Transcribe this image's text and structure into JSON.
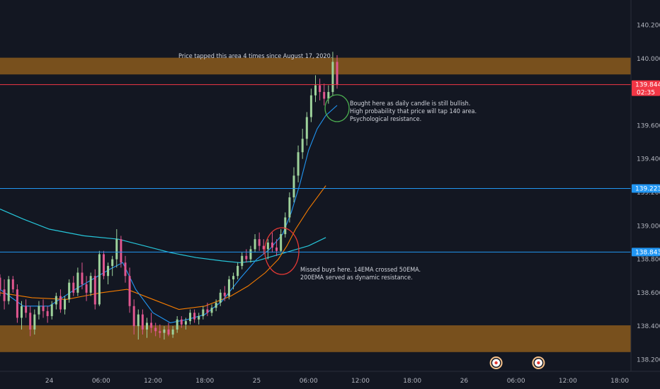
{
  "colors": {
    "background": "#131722",
    "zone": "#8b5a1c",
    "up_candle": "#26a69a",
    "up_candle_fill": "#9ed29b",
    "down_candle": "#ef5350",
    "down_candle_fill": "#e0568f",
    "ema14": "#2196f3",
    "ema50": "#f57c00",
    "ema200": "#26c6da",
    "price_line": "#f23645",
    "support_line": "#2196f3",
    "green_circle": "#4caf50",
    "red_circle": "#e53935"
  },
  "chart_data": {
    "type": "candlestick",
    "title": "",
    "xlabel": "",
    "ylabel": "",
    "ylim": [
      138.13,
      140.35
    ],
    "y_ticks": [
      "140.200",
      "140.000",
      "139.800",
      "139.600",
      "139.400",
      "139.200",
      "139.000",
      "138.800",
      "138.600",
      "138.400",
      "138.200"
    ],
    "y_tick_values": [
      140.2,
      140.0,
      139.8,
      139.6,
      139.4,
      139.2,
      139.0,
      138.8,
      138.6,
      138.4,
      138.2
    ],
    "x_ticks": [
      "24",
      "06:00",
      "12:00",
      "18:00",
      "25",
      "06:00",
      "12:00",
      "18:00",
      "26",
      "06:00",
      "12:00",
      "18:00"
    ],
    "x_tick_hours": [
      0,
      6,
      12,
      18,
      24,
      30,
      36,
      42,
      48,
      54,
      60,
      66
    ],
    "x_range_hours": [
      -5.7,
      67.3
    ],
    "zones": [
      {
        "name": "resistance",
        "from": 139.905,
        "to": 140.005
      },
      {
        "name": "support",
        "from": 138.245,
        "to": 138.405
      }
    ],
    "horizontal_lines": [
      {
        "name": "current-price",
        "value": 139.844,
        "label": "139.844",
        "sublabel": "02:35",
        "color": "#f23645"
      },
      {
        "name": "line-139223",
        "value": 139.223,
        "label": "139.223",
        "color": "#2196f3"
      },
      {
        "name": "line-138843",
        "value": 138.843,
        "label": "138.843",
        "color": "#2196f3"
      }
    ],
    "series_hint": "5-minute-ish candles (hourly-ish aggregation) from 23rd evening to 25th 09:00",
    "candles": [
      {
        "t": -5.7,
        "o": 138.69,
        "h": 138.71,
        "l": 138.58,
        "c": 138.62
      },
      {
        "t": -5.2,
        "o": 138.62,
        "h": 138.68,
        "l": 138.5,
        "c": 138.55
      },
      {
        "t": -4.7,
        "o": 138.55,
        "h": 138.7,
        "l": 138.53,
        "c": 138.68
      },
      {
        "t": -4.2,
        "o": 138.68,
        "h": 138.7,
        "l": 138.6,
        "c": 138.62
      },
      {
        "t": -3.7,
        "o": 138.62,
        "h": 138.65,
        "l": 138.42,
        "c": 138.45
      },
      {
        "t": -3.2,
        "o": 138.45,
        "h": 138.55,
        "l": 138.38,
        "c": 138.52
      },
      {
        "t": -2.7,
        "o": 138.52,
        "h": 138.56,
        "l": 138.45,
        "c": 138.48
      },
      {
        "t": -2.2,
        "o": 138.48,
        "h": 138.52,
        "l": 138.34,
        "c": 138.38
      },
      {
        "t": -1.7,
        "o": 138.38,
        "h": 138.5,
        "l": 138.35,
        "c": 138.47
      },
      {
        "t": -1.2,
        "o": 138.47,
        "h": 138.55,
        "l": 138.44,
        "c": 138.52
      },
      {
        "t": -0.7,
        "o": 138.52,
        "h": 138.56,
        "l": 138.45,
        "c": 138.49
      },
      {
        "t": -0.2,
        "o": 138.49,
        "h": 138.52,
        "l": 138.42,
        "c": 138.46
      },
      {
        "t": 0.3,
        "o": 138.46,
        "h": 138.55,
        "l": 138.44,
        "c": 138.53
      },
      {
        "t": 0.8,
        "o": 138.53,
        "h": 138.6,
        "l": 138.5,
        "c": 138.58
      },
      {
        "t": 1.3,
        "o": 138.58,
        "h": 138.62,
        "l": 138.48,
        "c": 138.5
      },
      {
        "t": 1.8,
        "o": 138.5,
        "h": 138.58,
        "l": 138.47,
        "c": 138.56
      },
      {
        "t": 2.3,
        "o": 138.56,
        "h": 138.68,
        "l": 138.54,
        "c": 138.66
      },
      {
        "t": 2.8,
        "o": 138.66,
        "h": 138.7,
        "l": 138.58,
        "c": 138.6
      },
      {
        "t": 3.3,
        "o": 138.6,
        "h": 138.75,
        "l": 138.58,
        "c": 138.72
      },
      {
        "t": 3.8,
        "o": 138.72,
        "h": 138.78,
        "l": 138.62,
        "c": 138.65
      },
      {
        "t": 4.3,
        "o": 138.65,
        "h": 138.7,
        "l": 138.55,
        "c": 138.6
      },
      {
        "t": 4.8,
        "o": 138.6,
        "h": 138.72,
        "l": 138.58,
        "c": 138.7
      },
      {
        "t": 5.3,
        "o": 138.7,
        "h": 138.74,
        "l": 138.5,
        "c": 138.53
      },
      {
        "t": 5.8,
        "o": 138.53,
        "h": 138.85,
        "l": 138.52,
        "c": 138.83
      },
      {
        "t": 6.3,
        "o": 138.83,
        "h": 138.85,
        "l": 138.68,
        "c": 138.7
      },
      {
        "t": 6.8,
        "o": 138.7,
        "h": 138.78,
        "l": 138.65,
        "c": 138.76
      },
      {
        "t": 7.3,
        "o": 138.76,
        "h": 138.82,
        "l": 138.7,
        "c": 138.8
      },
      {
        "t": 7.8,
        "o": 138.8,
        "h": 138.98,
        "l": 138.75,
        "c": 138.92
      },
      {
        "t": 8.3,
        "o": 138.92,
        "h": 138.94,
        "l": 138.75,
        "c": 138.78
      },
      {
        "t": 8.8,
        "o": 138.78,
        "h": 138.82,
        "l": 138.66,
        "c": 138.7
      },
      {
        "t": 9.3,
        "o": 138.7,
        "h": 138.75,
        "l": 138.48,
        "c": 138.52
      },
      {
        "t": 9.8,
        "o": 138.52,
        "h": 138.56,
        "l": 138.35,
        "c": 138.4
      },
      {
        "t": 10.3,
        "o": 138.4,
        "h": 138.5,
        "l": 138.32,
        "c": 138.47
      },
      {
        "t": 10.8,
        "o": 138.47,
        "h": 138.5,
        "l": 138.35,
        "c": 138.38
      },
      {
        "t": 11.3,
        "o": 138.38,
        "h": 138.45,
        "l": 138.33,
        "c": 138.42
      },
      {
        "t": 11.8,
        "o": 138.42,
        "h": 138.48,
        "l": 138.36,
        "c": 138.39
      },
      {
        "t": 12.3,
        "o": 138.39,
        "h": 138.42,
        "l": 138.34,
        "c": 138.37
      },
      {
        "t": 12.8,
        "o": 138.37,
        "h": 138.41,
        "l": 138.33,
        "c": 138.36
      },
      {
        "t": 13.3,
        "o": 138.36,
        "h": 138.4,
        "l": 138.32,
        "c": 138.38
      },
      {
        "t": 13.8,
        "o": 138.38,
        "h": 138.42,
        "l": 138.34,
        "c": 138.35
      },
      {
        "t": 14.3,
        "o": 138.35,
        "h": 138.4,
        "l": 138.33,
        "c": 138.38
      },
      {
        "t": 14.8,
        "o": 138.38,
        "h": 138.46,
        "l": 138.36,
        "c": 138.44
      },
      {
        "t": 15.3,
        "o": 138.44,
        "h": 138.46,
        "l": 138.39,
        "c": 138.41
      },
      {
        "t": 15.8,
        "o": 138.41,
        "h": 138.45,
        "l": 138.38,
        "c": 138.43
      },
      {
        "t": 16.3,
        "o": 138.43,
        "h": 138.5,
        "l": 138.41,
        "c": 138.48
      },
      {
        "t": 16.8,
        "o": 138.48,
        "h": 138.5,
        "l": 138.42,
        "c": 138.44
      },
      {
        "t": 17.3,
        "o": 138.44,
        "h": 138.48,
        "l": 138.41,
        "c": 138.46
      },
      {
        "t": 17.8,
        "o": 138.46,
        "h": 138.52,
        "l": 138.44,
        "c": 138.5
      },
      {
        "t": 18.3,
        "o": 138.5,
        "h": 138.54,
        "l": 138.46,
        "c": 138.48
      },
      {
        "t": 18.8,
        "o": 138.48,
        "h": 138.53,
        "l": 138.46,
        "c": 138.51
      },
      {
        "t": 19.3,
        "o": 138.51,
        "h": 138.56,
        "l": 138.49,
        "c": 138.54
      },
      {
        "t": 19.8,
        "o": 138.54,
        "h": 138.62,
        "l": 138.52,
        "c": 138.6
      },
      {
        "t": 20.3,
        "o": 138.6,
        "h": 138.64,
        "l": 138.55,
        "c": 138.58
      },
      {
        "t": 20.8,
        "o": 138.58,
        "h": 138.7,
        "l": 138.56,
        "c": 138.68
      },
      {
        "t": 21.3,
        "o": 138.68,
        "h": 138.72,
        "l": 138.62,
        "c": 138.7
      },
      {
        "t": 21.8,
        "o": 138.7,
        "h": 138.78,
        "l": 138.68,
        "c": 138.76
      },
      {
        "t": 22.3,
        "o": 138.76,
        "h": 138.84,
        "l": 138.74,
        "c": 138.82
      },
      {
        "t": 22.8,
        "o": 138.82,
        "h": 138.86,
        "l": 138.78,
        "c": 138.8
      },
      {
        "t": 23.3,
        "o": 138.8,
        "h": 138.88,
        "l": 138.78,
        "c": 138.86
      },
      {
        "t": 23.8,
        "o": 138.86,
        "h": 138.95,
        "l": 138.84,
        "c": 138.92
      },
      {
        "t": 24.3,
        "o": 138.92,
        "h": 138.96,
        "l": 138.85,
        "c": 138.88
      },
      {
        "t": 24.8,
        "o": 138.88,
        "h": 138.92,
        "l": 138.83,
        "c": 138.86
      },
      {
        "t": 25.3,
        "o": 138.86,
        "h": 138.92,
        "l": 138.8,
        "c": 138.9
      },
      {
        "t": 25.8,
        "o": 138.9,
        "h": 138.96,
        "l": 138.84,
        "c": 138.87
      },
      {
        "t": 26.3,
        "o": 138.87,
        "h": 138.92,
        "l": 138.82,
        "c": 138.85
      },
      {
        "t": 26.8,
        "o": 138.85,
        "h": 138.98,
        "l": 138.84,
        "c": 138.95
      },
      {
        "t": 27.3,
        "o": 138.95,
        "h": 139.08,
        "l": 138.93,
        "c": 139.05
      },
      {
        "t": 27.8,
        "o": 139.05,
        "h": 139.2,
        "l": 139.02,
        "c": 139.17
      },
      {
        "t": 28.3,
        "o": 139.17,
        "h": 139.35,
        "l": 139.14,
        "c": 139.3
      },
      {
        "t": 28.8,
        "o": 139.3,
        "h": 139.48,
        "l": 139.26,
        "c": 139.44
      },
      {
        "t": 29.3,
        "o": 139.44,
        "h": 139.58,
        "l": 139.4,
        "c": 139.52
      },
      {
        "t": 29.8,
        "o": 139.52,
        "h": 139.68,
        "l": 139.48,
        "c": 139.65
      },
      {
        "t": 30.3,
        "o": 139.65,
        "h": 139.82,
        "l": 139.62,
        "c": 139.78
      },
      {
        "t": 30.8,
        "o": 139.78,
        "h": 139.9,
        "l": 139.74,
        "c": 139.84
      },
      {
        "t": 31.3,
        "o": 139.84,
        "h": 139.88,
        "l": 139.75,
        "c": 139.8
      },
      {
        "t": 31.8,
        "o": 139.8,
        "h": 139.85,
        "l": 139.72,
        "c": 139.76
      },
      {
        "t": 32.3,
        "o": 139.76,
        "h": 139.84,
        "l": 139.73,
        "c": 139.8
      },
      {
        "t": 32.8,
        "o": 139.8,
        "h": 140.04,
        "l": 139.78,
        "c": 139.98
      },
      {
        "t": 33.3,
        "o": 139.98,
        "h": 140.02,
        "l": 139.82,
        "c": 139.844
      }
    ],
    "ema14": [
      [
        -5.7,
        138.62
      ],
      [
        -3,
        138.52
      ],
      [
        0,
        138.52
      ],
      [
        3,
        138.62
      ],
      [
        5,
        138.68
      ],
      [
        7,
        138.74
      ],
      [
        8.5,
        138.78
      ],
      [
        10,
        138.62
      ],
      [
        12,
        138.48
      ],
      [
        14,
        138.42
      ],
      [
        16,
        138.44
      ],
      [
        18,
        138.47
      ],
      [
        20,
        138.55
      ],
      [
        22,
        138.68
      ],
      [
        24,
        138.8
      ],
      [
        25.5,
        138.86
      ],
      [
        27,
        138.95
      ],
      [
        28,
        139.08
      ],
      [
        29,
        139.25
      ],
      [
        30,
        139.45
      ],
      [
        31,
        139.58
      ],
      [
        32,
        139.66
      ],
      [
        33.3,
        139.72
      ]
    ],
    "ema50": [
      [
        -5.7,
        138.6
      ],
      [
        -2,
        138.57
      ],
      [
        2,
        138.56
      ],
      [
        6,
        138.6
      ],
      [
        9,
        138.62
      ],
      [
        12,
        138.56
      ],
      [
        15,
        138.5
      ],
      [
        18,
        138.52
      ],
      [
        21,
        138.58
      ],
      [
        23,
        138.64
      ],
      [
        25,
        138.72
      ],
      [
        26.5,
        138.8
      ],
      [
        27.5,
        138.88
      ],
      [
        28.5,
        138.98
      ],
      [
        30,
        139.1
      ],
      [
        31,
        139.17
      ],
      [
        32,
        139.24
      ]
    ],
    "ema200": [
      [
        -5.7,
        139.1
      ],
      [
        -3,
        139.04
      ],
      [
        0,
        138.98
      ],
      [
        4,
        138.94
      ],
      [
        8,
        138.92
      ],
      [
        11,
        138.88
      ],
      [
        14,
        138.84
      ],
      [
        17,
        138.81
      ],
      [
        20,
        138.79
      ],
      [
        22,
        138.78
      ],
      [
        24,
        138.79
      ],
      [
        26,
        138.82
      ],
      [
        28,
        138.85
      ],
      [
        30,
        138.88
      ],
      [
        32,
        138.93
      ]
    ]
  },
  "annotations": {
    "top_note": "Price tapped this area 4 times since August 17, 2020.",
    "right_note": [
      "Bought here as daily candle is still bullish.",
      "High probability that price will tap 140 area.",
      "Psychological resistance."
    ],
    "bottom_note": [
      "Missed buys here.  14EMA crossed 50EMA.",
      "200EMA served as dynamic resistance."
    ]
  },
  "events": [
    {
      "name": "event-marker-1",
      "t": 51.7
    },
    {
      "name": "event-marker-2",
      "t": 56.6
    }
  ]
}
